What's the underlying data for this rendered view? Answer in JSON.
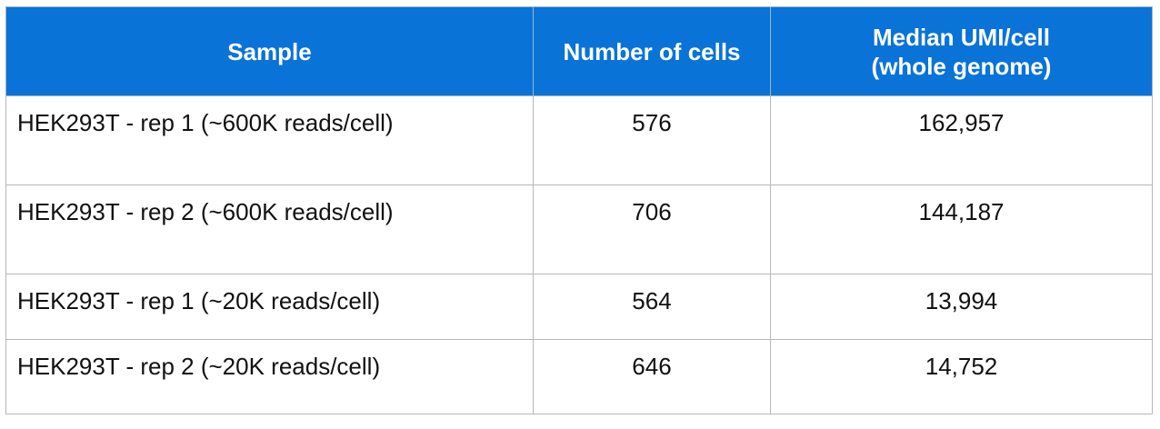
{
  "table": {
    "headers": {
      "sample": "Sample",
      "cells": "Number of cells",
      "umi_line1": "Median UMI/cell",
      "umi_line2": "(whole genome)"
    },
    "rows": [
      {
        "sample": "HEK293T - rep 1 (~600K reads/cell)",
        "cells": "576",
        "umi": "162,957"
      },
      {
        "sample": "HEK293T - rep 2 (~600K reads/cell)",
        "cells": "706",
        "umi": "144,187"
      },
      {
        "sample": "HEK293T - rep 1 (~20K reads/cell)",
        "cells": "564",
        "umi": "13,994"
      },
      {
        "sample": "HEK293T - rep 2 (~20K reads/cell)",
        "cells": "646",
        "umi": "14,752"
      }
    ]
  },
  "colors": {
    "header_background": "#0a73d8",
    "header_text": "#ffffff",
    "grid_lines": "#b7b7b7"
  }
}
